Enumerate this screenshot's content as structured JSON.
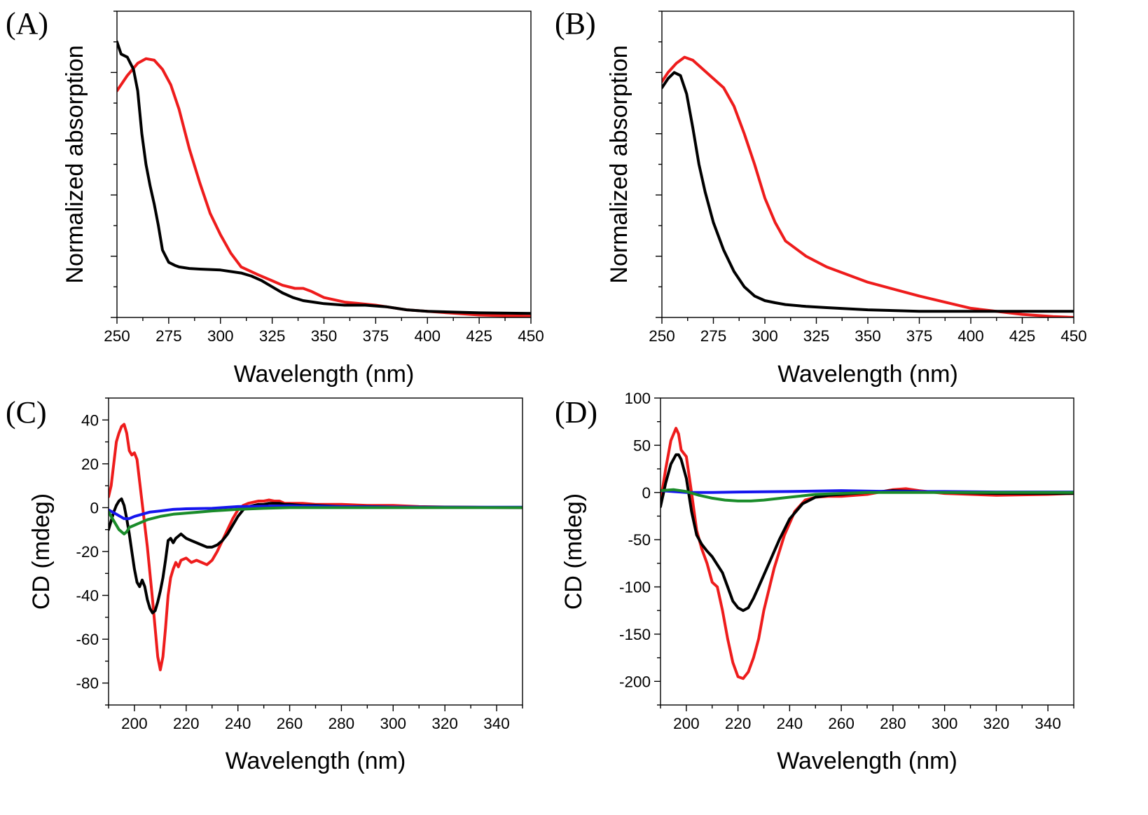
{
  "chart_data": [
    {
      "panel": "(A)",
      "type": "line",
      "xlabel": "Wavelength (nm)",
      "ylabel": "Normalized absorption",
      "xlim": [
        250,
        450
      ],
      "ylim": [
        0,
        1.0
      ],
      "xticks": [
        250,
        275,
        300,
        325,
        350,
        375,
        400,
        425,
        450
      ],
      "yticks": [
        0,
        0.2,
        0.4,
        0.6,
        0.8
      ],
      "show_ytick_labels": false,
      "series": [
        {
          "name": "red",
          "color": "#ee1c1c",
          "x": [
            250,
            255,
            260,
            264,
            268,
            272,
            276,
            280,
            285,
            290,
            295,
            300,
            305,
            310,
            318,
            325,
            330,
            336,
            340,
            344,
            350,
            360,
            375,
            380,
            390,
            400,
            410,
            425,
            440,
            450
          ],
          "y": [
            0.74,
            0.79,
            0.83,
            0.845,
            0.84,
            0.81,
            0.76,
            0.68,
            0.55,
            0.44,
            0.34,
            0.27,
            0.21,
            0.165,
            0.14,
            0.12,
            0.105,
            0.095,
            0.095,
            0.085,
            0.065,
            0.05,
            0.04,
            0.035,
            0.025,
            0.02,
            0.015,
            0.008,
            0.005,
            0.004
          ]
        },
        {
          "name": "black",
          "color": "#000000",
          "x": [
            250,
            252,
            255,
            258,
            260,
            262,
            264,
            266,
            268,
            270,
            272,
            275,
            278,
            280,
            285,
            290,
            300,
            310,
            315,
            320,
            325,
            330,
            335,
            340,
            345,
            350,
            360,
            370,
            380,
            390,
            400,
            425,
            450
          ],
          "y": [
            0.9,
            0.86,
            0.85,
            0.81,
            0.74,
            0.6,
            0.5,
            0.43,
            0.37,
            0.3,
            0.22,
            0.18,
            0.17,
            0.165,
            0.16,
            0.158,
            0.155,
            0.145,
            0.135,
            0.12,
            0.1,
            0.08,
            0.065,
            0.055,
            0.05,
            0.045,
            0.04,
            0.04,
            0.035,
            0.025,
            0.02,
            0.015,
            0.013
          ]
        }
      ]
    },
    {
      "panel": "(B)",
      "type": "line",
      "xlabel": "Wavelength (nm)",
      "ylabel": "Normalized absorption",
      "xlim": [
        250,
        450
      ],
      "ylim": [
        0,
        1.0
      ],
      "xticks": [
        250,
        275,
        300,
        325,
        350,
        375,
        400,
        425,
        450
      ],
      "yticks": [
        0,
        0.2,
        0.4,
        0.6,
        0.8
      ],
      "show_ytick_labels": false,
      "series": [
        {
          "name": "red",
          "color": "#ee1c1c",
          "x": [
            250,
            253,
            257,
            261,
            265,
            270,
            275,
            280,
            285,
            290,
            295,
            300,
            305,
            310,
            320,
            330,
            350,
            375,
            400,
            425,
            440,
            450
          ],
          "y": [
            0.77,
            0.8,
            0.83,
            0.85,
            0.84,
            0.81,
            0.78,
            0.75,
            0.69,
            0.6,
            0.5,
            0.39,
            0.31,
            0.25,
            0.2,
            0.165,
            0.115,
            0.07,
            0.03,
            0.01,
            0.003,
            0.0
          ]
        },
        {
          "name": "black",
          "color": "#000000",
          "x": [
            250,
            253,
            256,
            259,
            262,
            265,
            268,
            271,
            275,
            280,
            285,
            290,
            295,
            300,
            305,
            310,
            320,
            330,
            350,
            375,
            400,
            425,
            450
          ],
          "y": [
            0.75,
            0.78,
            0.8,
            0.79,
            0.73,
            0.62,
            0.5,
            0.41,
            0.31,
            0.22,
            0.15,
            0.1,
            0.07,
            0.055,
            0.048,
            0.042,
            0.036,
            0.032,
            0.025,
            0.02,
            0.02,
            0.02,
            0.02
          ]
        }
      ]
    },
    {
      "panel": "(C)",
      "type": "line",
      "xlabel": "Wavelength (nm)",
      "ylabel": "CD (mdeg)",
      "xlim": [
        190,
        350
      ],
      "ylim": [
        -90,
        50
      ],
      "xticks": [
        200,
        220,
        240,
        260,
        280,
        300,
        320,
        340
      ],
      "yticks": [
        -80,
        -60,
        -40,
        -20,
        0,
        20,
        40
      ],
      "series": [
        {
          "name": "red",
          "color": "#ee1c1c",
          "x": [
            190,
            191,
            192,
            193,
            194,
            195,
            196,
            197,
            198,
            199,
            200,
            201,
            202,
            203,
            204,
            205,
            206,
            207,
            208,
            209,
            210,
            211,
            212,
            213,
            214,
            215,
            216,
            217,
            218,
            220,
            222,
            224,
            226,
            228,
            230,
            232,
            234,
            236,
            238,
            240,
            242,
            244,
            246,
            248,
            250,
            252,
            254,
            256,
            258,
            260,
            265,
            270,
            275,
            280,
            290,
            300,
            310,
            320,
            330,
            340,
            350
          ],
          "y": [
            5,
            10,
            20,
            30,
            34,
            37,
            38,
            34,
            26,
            24,
            25,
            22,
            12,
            2,
            -8,
            -18,
            -30,
            -42,
            -55,
            -68,
            -74,
            -68,
            -55,
            -40,
            -32,
            -28,
            -25,
            -27,
            -24,
            -23,
            -25,
            -24,
            -25,
            -26,
            -24,
            -20,
            -15,
            -10,
            -5,
            -1,
            1,
            2,
            2.5,
            3,
            3,
            3.5,
            3,
            3,
            2,
            2,
            2,
            1.5,
            1.5,
            1.5,
            1,
            1,
            0.5,
            0.3,
            0.2,
            0.1,
            0
          ]
        },
        {
          "name": "black",
          "color": "#000000",
          "x": [
            190,
            191,
            192,
            193,
            194,
            195,
            196,
            197,
            198,
            199,
            200,
            201,
            202,
            203,
            204,
            205,
            206,
            207,
            208,
            209,
            210,
            211,
            212,
            213,
            214,
            215,
            216,
            217,
            218,
            219,
            220,
            222,
            224,
            226,
            228,
            230,
            232,
            234,
            236,
            238,
            240,
            242,
            244,
            246,
            248,
            250,
            252,
            254,
            256,
            258,
            260,
            265,
            270,
            280,
            290,
            300,
            320,
            340,
            350
          ],
          "y": [
            -10,
            -6,
            -2,
            1,
            3,
            4,
            1,
            -5,
            -12,
            -20,
            -28,
            -34,
            -36,
            -33,
            -36,
            -42,
            -46,
            -48,
            -47,
            -43,
            -38,
            -32,
            -24,
            -15,
            -14,
            -16,
            -14,
            -13,
            -12,
            -13,
            -14,
            -15,
            -16,
            -17,
            -18,
            -18,
            -17,
            -15,
            -12,
            -8,
            -4,
            -1,
            0.5,
            1,
            1.5,
            1.5,
            2,
            2,
            2,
            1.5,
            1.5,
            1,
            1,
            0.5,
            0.5,
            0.3,
            0.2,
            0.1,
            0
          ]
        },
        {
          "name": "blue",
          "color": "#1515ee",
          "x": [
            190,
            193,
            196,
            198,
            200,
            203,
            206,
            210,
            215,
            220,
            230,
            240,
            260,
            280,
            300,
            320,
            340,
            350
          ],
          "y": [
            -1,
            -3,
            -5,
            -5,
            -4,
            -3,
            -2,
            -1.5,
            -0.8,
            -0.5,
            -0.3,
            0.5,
            0.8,
            0.5,
            0.3,
            0.2,
            0.2,
            0.2
          ]
        },
        {
          "name": "green",
          "color": "#1a8c2a",
          "x": [
            190,
            192,
            194,
            196,
            197,
            198,
            200,
            202,
            205,
            210,
            215,
            220,
            225,
            230,
            240,
            250,
            260,
            280,
            300,
            320,
            350
          ],
          "y": [
            -2,
            -6,
            -10,
            -12,
            -11,
            -9,
            -8,
            -7,
            -5.5,
            -4,
            -3,
            -2.5,
            -2,
            -1.5,
            -0.8,
            -0.3,
            0,
            0,
            0,
            0,
            0
          ]
        }
      ]
    },
    {
      "panel": "(D)",
      "type": "line",
      "xlabel": "Wavelength (nm)",
      "ylabel": "CD (mdeg)",
      "xlim": [
        190,
        350
      ],
      "ylim": [
        -225,
        100
      ],
      "xticks": [
        200,
        220,
        240,
        260,
        280,
        300,
        320,
        340
      ],
      "yticks": [
        -200,
        -150,
        -100,
        -50,
        0,
        50,
        100
      ],
      "series": [
        {
          "name": "red",
          "color": "#ee1c1c",
          "x": [
            190,
            192,
            194,
            196,
            197,
            198,
            200,
            202,
            204,
            206,
            208,
            210,
            212,
            214,
            216,
            218,
            220,
            222,
            224,
            226,
            228,
            230,
            234,
            238,
            242,
            246,
            250,
            255,
            260,
            270,
            280,
            285,
            290,
            300,
            320,
            340,
            350
          ],
          "y": [
            -10,
            25,
            55,
            68,
            62,
            45,
            38,
            0,
            -40,
            -60,
            -75,
            -95,
            -100,
            -125,
            -155,
            -180,
            -195,
            -197,
            -190,
            -175,
            -155,
            -125,
            -80,
            -45,
            -20,
            -8,
            -5,
            -4,
            -4,
            -2,
            3,
            4,
            2,
            -1,
            -3,
            -2,
            -1
          ]
        },
        {
          "name": "black",
          "color": "#000000",
          "x": [
            190,
            192,
            194,
            196,
            197,
            198,
            200,
            202,
            204,
            206,
            208,
            210,
            214,
            216,
            218,
            220,
            222,
            224,
            226,
            228,
            232,
            236,
            240,
            245,
            250,
            255,
            260,
            270,
            280,
            290,
            300,
            320,
            340,
            350
          ],
          "y": [
            -15,
            10,
            30,
            40,
            40,
            35,
            15,
            -20,
            -45,
            -55,
            -62,
            -68,
            -85,
            -100,
            -115,
            -122,
            -125,
            -122,
            -112,
            -100,
            -75,
            -50,
            -28,
            -12,
            -5,
            -3,
            -2,
            0,
            2,
            1,
            0,
            -1,
            -1,
            -1
          ]
        },
        {
          "name": "blue",
          "color": "#1515ee",
          "x": [
            190,
            200,
            210,
            220,
            240,
            260,
            280,
            300,
            320,
            340,
            350
          ],
          "y": [
            2,
            0,
            0,
            0.5,
            1,
            2,
            1,
            1,
            0.5,
            0.5,
            0.5
          ]
        },
        {
          "name": "green",
          "color": "#1a8c2a",
          "x": [
            190,
            195,
            200,
            205,
            210,
            215,
            220,
            225,
            230,
            240,
            250,
            260,
            270,
            280,
            300,
            320,
            350
          ],
          "y": [
            2,
            3,
            1,
            -3,
            -6,
            -8,
            -9,
            -9,
            -8,
            -5,
            -2,
            -1,
            0,
            0,
            0,
            0,
            0
          ]
        }
      ]
    }
  ]
}
